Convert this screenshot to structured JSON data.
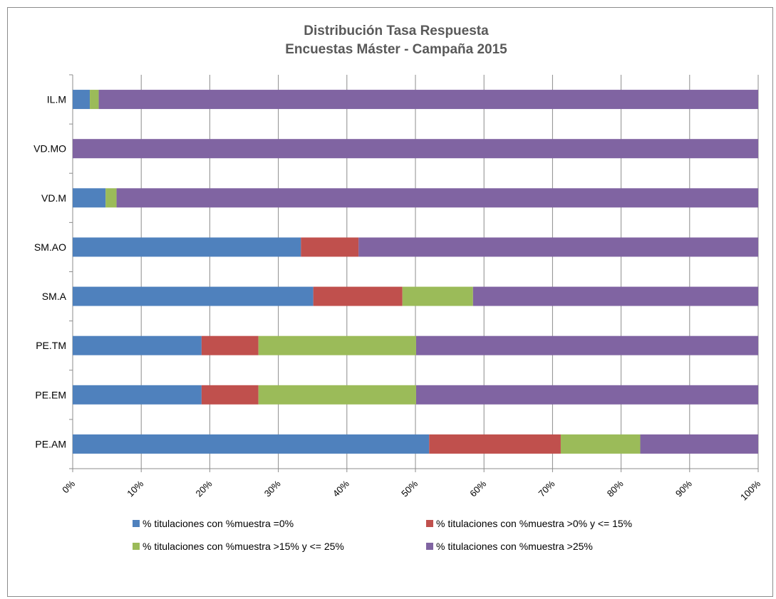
{
  "chart_data": {
    "type": "bar",
    "orientation": "horizontal",
    "stacked": "percent",
    "title": [
      "Distribución Tasa Respuesta",
      "Encuestas Máster - Campaña 2015"
    ],
    "categories": [
      "IL.M",
      "VD.MO",
      "VD.M",
      "SM.AO",
      "SM.A",
      "PE.TM",
      "PE.EM",
      "PE.AM"
    ],
    "xlim": [
      0,
      100
    ],
    "xticks": [
      "0%",
      "10%",
      "20%",
      "30%",
      "40%",
      "50%",
      "60%",
      "70%",
      "80%",
      "90%",
      "100%"
    ],
    "grid": "vertical",
    "legend_position": "bottom",
    "series": [
      {
        "name": "% titulaciones con %muestra  =0%",
        "color": "#4F81BD",
        "values": [
          2.5,
          0,
          4.8,
          33.3,
          35.1,
          18.8,
          18.8,
          52.0
        ]
      },
      {
        "name": "% titulaciones con %muestra  >0% y <= 15%",
        "color": "#C0504D",
        "values": [
          0,
          0,
          0,
          8.4,
          13.0,
          8.3,
          8.3,
          19.2
        ]
      },
      {
        "name": "% titulaciones con %muestra  >15% y <= 25%",
        "color": "#9BBB59",
        "values": [
          1.3,
          0,
          1.6,
          0,
          10.3,
          23.0,
          23.0,
          11.6
        ]
      },
      {
        "name": "% titulaciones con %muestra  >25%",
        "color": "#8064A2",
        "values": [
          96.2,
          100,
          93.6,
          58.3,
          41.6,
          49.9,
          49.9,
          17.2
        ]
      }
    ]
  }
}
